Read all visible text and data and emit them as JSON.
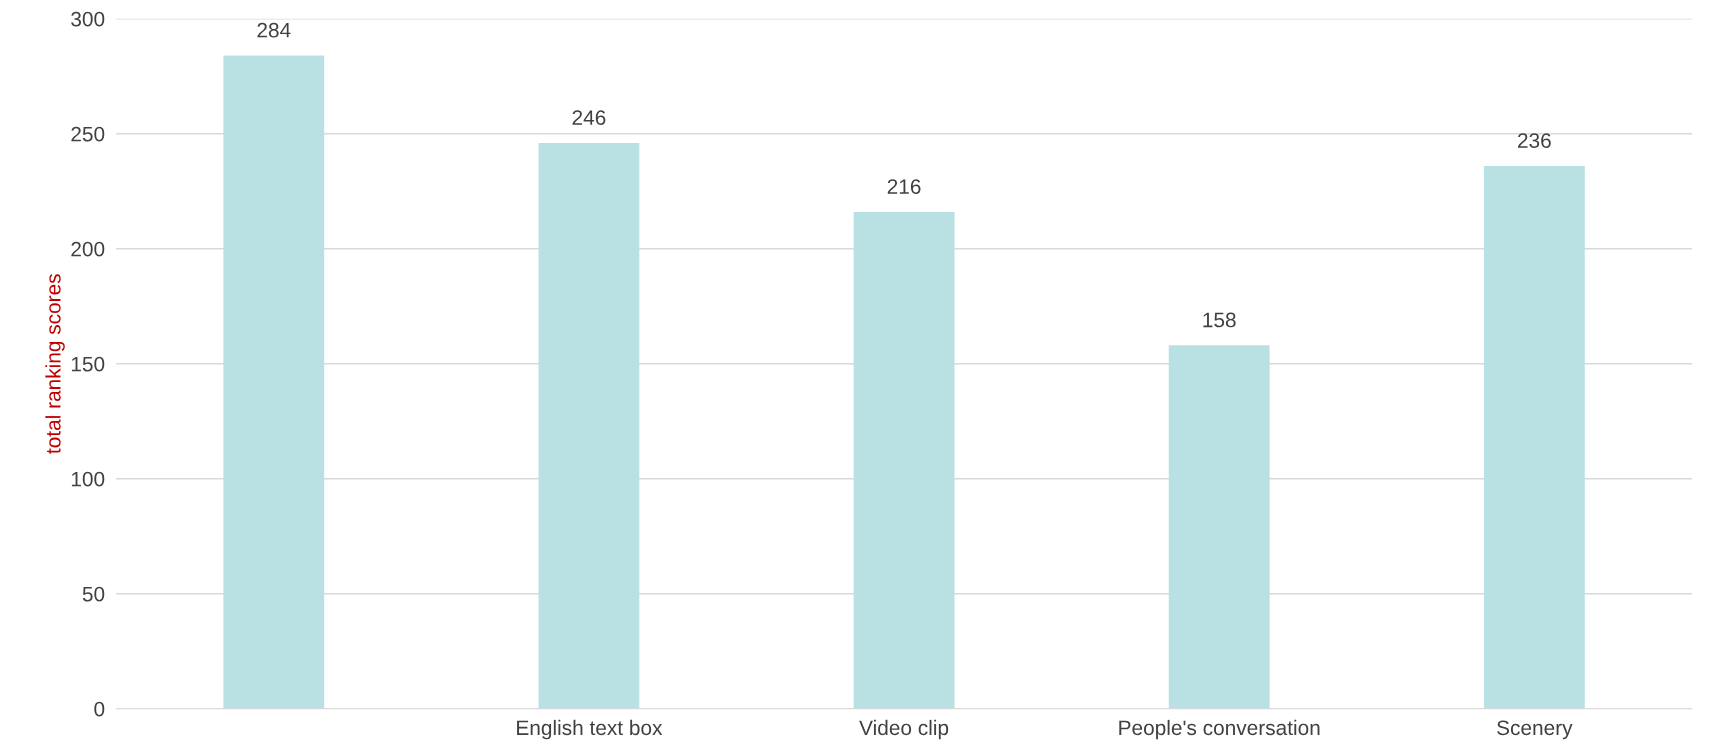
{
  "chart_data": {
    "type": "bar",
    "ylabel": "total ranking scores",
    "categories": [
      null,
      "English text box",
      "Video clip",
      "People's conversation",
      "Scenery"
    ],
    "values": [
      284,
      246,
      216,
      158,
      236
    ],
    "color": "#b9e0e3",
    "ylim": [
      0,
      300
    ],
    "yticks": [
      0,
      50,
      100,
      150,
      200,
      250,
      300
    ],
    "grid": "y",
    "data_labels": true
  }
}
